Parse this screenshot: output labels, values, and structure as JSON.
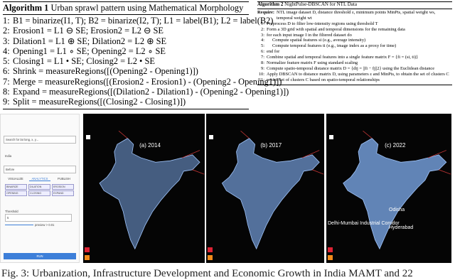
{
  "algorithm1": {
    "label": "Algorithm 1",
    "title": "Urban sprawl pattern using Mathematical Morphology",
    "lines": [
      {
        "n": "1:",
        "text": "B1 = binarize(I1, T); B2 = binarize(I2, T); L1 = label(B1); L2 = label(B2)"
      },
      {
        "n": "2:",
        "text": "Erosion1 = L1 ⊖ SE; Erosion2 = L2 ⊖ SE"
      },
      {
        "n": "3:",
        "text": "Dilation1 = L1 ⊕ SE; Dilation2 = L2 ⊕ SE"
      },
      {
        "n": "4:",
        "text": "Opening1 = L1 ∘ SE; Opening2 = L2 ∘ SE"
      },
      {
        "n": "5:",
        "text": "Closing1 = L1 • SE; Closing2 = L2 • SE"
      },
      {
        "n": "6:",
        "text": "Shrink = measureRegions([(Opening2 - Opening1)])"
      },
      {
        "n": "7:",
        "text": "Merge = measureRegions([(Erosion2 - Erosion1) - (Opening2 - Opening1)])"
      },
      {
        "n": "8:",
        "text": "Expand = measureRegions([(Dilation2 - Dilation1) - (Opening2 - Opening1)])"
      },
      {
        "n": "9:",
        "text": "Split = measureRegions([(Closing2 - Closing1)])"
      }
    ]
  },
  "algorithm2": {
    "label": "Algorithm 2",
    "title": "NightPulse-DBSCAN for NTL Data",
    "lines": [
      {
        "n": "Require:",
        "text": "NTL image dataset D, distance threshold ε, minimum points MinPts, spatial weight ws, temporal weight wt"
      },
      {
        "n": "1:",
        "text": "Preprocess D to filter low-intensity regions using threshold T"
      },
      {
        "n": "2:",
        "text": "Form a 3D grid with spatial and temporal dimensions for the remaining data"
      },
      {
        "n": "3:",
        "text": "for each input image I in the filtered dataset do"
      },
      {
        "n": "4:",
        "text": "Compute spatial features si (e.g., average intensity)"
      },
      {
        "n": "5:",
        "text": "Compute temporal features ti (e.g., image index as a proxy for time)"
      },
      {
        "n": "6:",
        "text": "end for"
      },
      {
        "n": "7:",
        "text": "Combine spatial and temporal features into a single feature matrix F = {fi = (si, ti)}"
      },
      {
        "n": "8:",
        "text": "Normalize feature matrix F using standard scaling"
      },
      {
        "n": "9:",
        "text": "Compute spatio-temporal distance matrix D = {dij = ||fi − fj||2} using the Euclidean distance"
      },
      {
        "n": "10:",
        "text": "Apply DBSCAN to distance matrix D, using parameters ε and MinPts, to obtain the set of clusters C"
      },
      {
        "n": "11:",
        "text": "return Set of clusters C based on spatio-temporal relationships"
      }
    ]
  },
  "ui": {
    "search": "Search for lat long, x, y...",
    "country": "India",
    "layer": "Before",
    "tabs": [
      "VISUALIZE",
      "ANALYTICS",
      "PUBLISH"
    ],
    "ops": [
      "BINARIZE",
      "DILATION",
      "EROSION",
      "OPENING",
      "CLOSING",
      "EXPAND"
    ],
    "threshold_label": "Threshold",
    "threshold_value": "5",
    "preview": "preview > 0.01",
    "run": "RUN"
  },
  "maps": [
    {
      "label": "(a) 2014"
    },
    {
      "label": "(b) 2017"
    },
    {
      "label": "(c) 2022",
      "annotations": [
        "Odisha",
        "Delhi-Mumbai Industrial Corridor",
        "Hyderabad"
      ]
    }
  ],
  "caption": "Fig. 3: Urbanization, Infrastructure Development and Economic Growth in India MAMT and 22"
}
